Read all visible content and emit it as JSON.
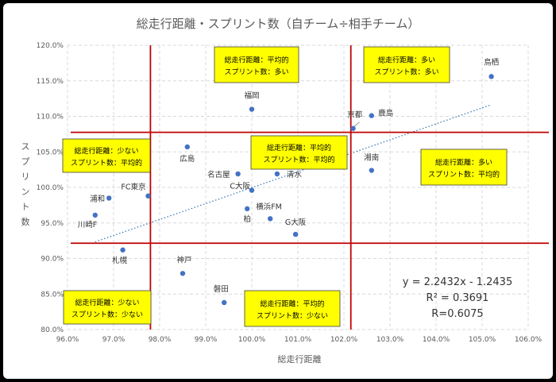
{
  "chart_data": {
    "type": "scatter",
    "title": "総走行距離・スプリント数（自チーム÷相手チーム）",
    "xlabel": "総走行距離",
    "ylabel": "スプリント数",
    "xlim": [
      0.96,
      1.06
    ],
    "ylim": [
      0.8,
      1.2
    ],
    "xticks": [
      "96.0%",
      "97.0%",
      "98.0%",
      "99.0%",
      "100.0%",
      "101.0%",
      "102.0%",
      "103.0%",
      "104.0%",
      "105.0%",
      "106.0%"
    ],
    "yticks": [
      "80.0%",
      "85.0%",
      "90.0%",
      "95.0%",
      "100.0%",
      "105.0%",
      "110.0%",
      "115.0%",
      "120.0%"
    ],
    "grid": "dashed",
    "point_color": "#4472C4",
    "points": [
      {
        "label": "鳥栖",
        "x": 1.052,
        "y": 1.156
      },
      {
        "label": "京都",
        "x": 1.022,
        "y": 1.083
      },
      {
        "label": "鹿島",
        "x": 1.026,
        "y": 1.101
      },
      {
        "label": "福岡",
        "x": 1.0,
        "y": 1.11
      },
      {
        "label": "広島",
        "x": 0.986,
        "y": 1.057
      },
      {
        "label": "湘南",
        "x": 1.026,
        "y": 1.024
      },
      {
        "label": "名古屋",
        "x": 0.997,
        "y": 1.019
      },
      {
        "label": "清水",
        "x": 1.0055,
        "y": 1.019
      },
      {
        "label": "C大阪",
        "x": 1.0,
        "y": 0.996
      },
      {
        "label": "FC東京",
        "x": 0.9775,
        "y": 0.988
      },
      {
        "label": "浦和",
        "x": 0.969,
        "y": 0.985
      },
      {
        "label": "柏",
        "x": 0.999,
        "y": 0.97
      },
      {
        "label": "横浜FM",
        "x": 1.004,
        "y": 0.956
      },
      {
        "label": "川崎F",
        "x": 0.966,
        "y": 0.961
      },
      {
        "label": "G大阪",
        "x": 1.0095,
        "y": 0.934
      },
      {
        "label": "札幌",
        "x": 0.972,
        "y": 0.912
      },
      {
        "label": "神戸",
        "x": 0.985,
        "y": 0.879
      },
      {
        "label": "磐田",
        "x": 0.994,
        "y": 0.838
      }
    ],
    "trendline": {
      "slope": 2.2432,
      "intercept": -1.2435,
      "x_range": [
        0.966,
        1.052
      ],
      "color": "#2E75B6",
      "style": "dotted"
    },
    "reference_lines": {
      "color": "#C00000",
      "vertical_x": [
        0.978,
        1.0215
      ],
      "horizontal_y": [
        0.9215,
        1.0775
      ]
    },
    "equation_lines": [
      "y = 2.2432x - 1.2435",
      "R² = 0.3691",
      "R=0.6075"
    ],
    "quadrant_boxes": [
      {
        "lines": [
          "総走行距離：平均的",
          "スプリント数：多い"
        ]
      },
      {
        "lines": [
          "総走行距離：多い",
          "スプリント数：多い"
        ]
      },
      {
        "lines": [
          "総走行距離：少ない",
          "スプリント数：平均的"
        ]
      },
      {
        "lines": [
          "総走行距離：平均的",
          "スプリント数：平均的"
        ]
      },
      {
        "lines": [
          "総走行距離：多い",
          "スプリント数：平均的"
        ]
      },
      {
        "lines": [
          "総走行距離：少ない",
          "スプリント数：少ない"
        ]
      },
      {
        "lines": [
          "総走行距離：平均的",
          "スプリント数：少ない"
        ]
      }
    ],
    "quadrant_box_color": "#FFFF00"
  }
}
